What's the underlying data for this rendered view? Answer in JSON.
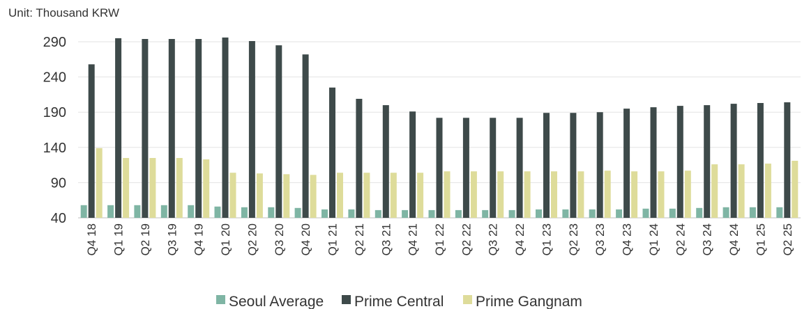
{
  "chart_data": {
    "type": "bar",
    "unit_label": "Unit: Thousand KRW",
    "title": "",
    "xlabel": "",
    "ylabel": "",
    "ylim": [
      40,
      300
    ],
    "yticks": [
      40,
      90,
      140,
      190,
      240,
      290
    ],
    "grid": "horizontal",
    "legend_position": "bottom",
    "categories": [
      "Q4 18",
      "Q1 19",
      "Q2 19",
      "Q3 19",
      "Q4 19",
      "Q1 20",
      "Q2 20",
      "Q3 20",
      "Q4 20",
      "Q1 21",
      "Q2 21",
      "Q3 21",
      "Q4 21",
      "Q1 22",
      "Q2 22",
      "Q3 22",
      "Q4 22",
      "Q1 23",
      "Q2 23",
      "Q3 23",
      "Q4 23",
      "Q1 24",
      "Q2 24",
      "Q3 24",
      "Q4 24",
      "Q1 25",
      "Q2 25"
    ],
    "series": [
      {
        "name": "Seoul Average",
        "color": "#7fb5a4",
        "values": [
          58,
          58,
          58,
          58,
          58,
          56,
          55,
          55,
          54,
          52,
          52,
          51,
          51,
          51,
          51,
          51,
          51,
          52,
          52,
          52,
          52,
          53,
          53,
          54,
          55,
          55,
          55
        ]
      },
      {
        "name": "Prime Central",
        "color": "#3e4a4a",
        "values": [
          258,
          295,
          294,
          294,
          294,
          296,
          291,
          285,
          272,
          225,
          209,
          200,
          191,
          182,
          182,
          182,
          182,
          189,
          189,
          190,
          195,
          197,
          199,
          200,
          202,
          203,
          204
        ]
      },
      {
        "name": "Prime Gangnam",
        "color": "#dedc9a",
        "values": [
          139,
          125,
          125,
          125,
          123,
          104,
          103,
          102,
          101,
          104,
          104,
          104,
          104,
          106,
          106,
          106,
          106,
          106,
          106,
          107,
          106,
          106,
          107,
          116,
          116,
          117,
          121
        ]
      }
    ]
  }
}
